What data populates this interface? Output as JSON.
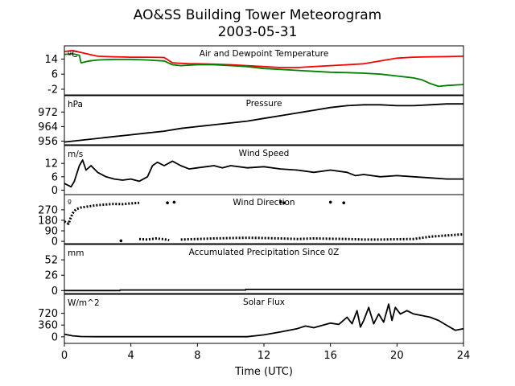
{
  "figure": {
    "title_line1": "AO&SS Building Tower Meteorogram",
    "title_line2": "2003-05-31",
    "xlabel": "Time (UTC)"
  },
  "chart_data": [
    {
      "type": "line",
      "title": "Air and Dewpoint Temperature",
      "unit": "ºC",
      "ylim": [
        -5,
        21
      ],
      "yticks": [
        -2,
        6,
        14
      ],
      "series": [
        {
          "color": "#ff0000",
          "points": [
            [
              0,
              18
            ],
            [
              0.5,
              18.5
            ],
            [
              1,
              17.5
            ],
            [
              1.5,
              16.5
            ],
            [
              2,
              15.5
            ],
            [
              3,
              15.2
            ],
            [
              4,
              15
            ],
            [
              5,
              15
            ],
            [
              6,
              14.8
            ],
            [
              6.5,
              12
            ],
            [
              7.5,
              11.5
            ],
            [
              8,
              11.5
            ],
            [
              9,
              11.3
            ],
            [
              10,
              11
            ],
            [
              11,
              10.5
            ],
            [
              12,
              10
            ],
            [
              13,
              9.5
            ],
            [
              14,
              9.5
            ],
            [
              15,
              10
            ],
            [
              16,
              10.5
            ],
            [
              17,
              11
            ],
            [
              18,
              11.5
            ],
            [
              19,
              13
            ],
            [
              20,
              14.5
            ],
            [
              21,
              15
            ],
            [
              22,
              15.2
            ],
            [
              23,
              15.3
            ],
            [
              24,
              15.5
            ]
          ]
        },
        {
          "color": "#008000",
          "points": [
            [
              0,
              16.5
            ],
            [
              0.5,
              16.8
            ],
            [
              0.9,
              16
            ],
            [
              1,
              12
            ],
            [
              1.5,
              13
            ],
            [
              2,
              13.5
            ],
            [
              3,
              13.8
            ],
            [
              4,
              13.8
            ],
            [
              5,
              13.5
            ],
            [
              6,
              13
            ],
            [
              6.5,
              11
            ],
            [
              7,
              10.5
            ],
            [
              8,
              11
            ],
            [
              9,
              11
            ],
            [
              10,
              10.5
            ],
            [
              11,
              10
            ],
            [
              12,
              9
            ],
            [
              13,
              8.5
            ],
            [
              14,
              8
            ],
            [
              15,
              7.5
            ],
            [
              16,
              7
            ],
            [
              17,
              6.8
            ],
            [
              18,
              6.5
            ],
            [
              19,
              6
            ],
            [
              20,
              5
            ],
            [
              21,
              4
            ],
            [
              21.5,
              3
            ],
            [
              22,
              1
            ],
            [
              22.5,
              -0.5
            ],
            [
              23,
              0
            ],
            [
              24,
              0.5
            ]
          ]
        }
      ]
    },
    {
      "type": "line",
      "title": "Pressure",
      "unit": "hPa",
      "ylim": [
        954,
        981
      ],
      "yticks": [
        956,
        964,
        972
      ],
      "series": [
        {
          "color": "#000000",
          "points": [
            [
              0,
              955.5
            ],
            [
              1,
              956.5
            ],
            [
              2,
              957.5
            ],
            [
              3,
              958.5
            ],
            [
              4,
              959.5
            ],
            [
              5,
              960.5
            ],
            [
              6,
              961.5
            ],
            [
              7,
              963
            ],
            [
              8,
              964
            ],
            [
              9,
              965
            ],
            [
              10,
              966
            ],
            [
              11,
              967
            ],
            [
              12,
              968.5
            ],
            [
              13,
              970
            ],
            [
              14,
              971.5
            ],
            [
              15,
              973
            ],
            [
              16,
              974.5
            ],
            [
              17,
              975.5
            ],
            [
              18,
              976
            ],
            [
              19,
              976
            ],
            [
              20,
              975.5
            ],
            [
              21,
              975.5
            ],
            [
              22,
              976
            ],
            [
              23,
              976.5
            ],
            [
              24,
              976.5
            ]
          ]
        }
      ]
    },
    {
      "type": "line",
      "title": "Wind Speed",
      "unit": "m/s",
      "ylim": [
        -2,
        20
      ],
      "yticks": [
        0,
        6,
        12
      ],
      "series": [
        {
          "color": "#000000",
          "points": [
            [
              0,
              3
            ],
            [
              0.4,
              1.5
            ],
            [
              0.6,
              4
            ],
            [
              0.9,
              11
            ],
            [
              1.1,
              13.5
            ],
            [
              1.3,
              9
            ],
            [
              1.6,
              11
            ],
            [
              2,
              8
            ],
            [
              2.5,
              6
            ],
            [
              3,
              5
            ],
            [
              3.5,
              4.5
            ],
            [
              4,
              5
            ],
            [
              4.5,
              4
            ],
            [
              5,
              6
            ],
            [
              5.3,
              11
            ],
            [
              5.6,
              12.5
            ],
            [
              6,
              11
            ],
            [
              6.5,
              13
            ],
            [
              7,
              11
            ],
            [
              7.5,
              9.5
            ],
            [
              8,
              10
            ],
            [
              9,
              11
            ],
            [
              9.5,
              10
            ],
            [
              10,
              11
            ],
            [
              11,
              10
            ],
            [
              12,
              10.5
            ],
            [
              13,
              9.5
            ],
            [
              14,
              9
            ],
            [
              15,
              8
            ],
            [
              16,
              9
            ],
            [
              17,
              8
            ],
            [
              17.5,
              6.5
            ],
            [
              18,
              7
            ],
            [
              19,
              6
            ],
            [
              20,
              6.5
            ],
            [
              21,
              6
            ],
            [
              22,
              5.5
            ],
            [
              23,
              5
            ],
            [
              24,
              5
            ]
          ]
        }
      ]
    },
    {
      "type": "scatter",
      "title": "Wind Direction",
      "unit": "º",
      "ylim": [
        -20,
        400
      ],
      "yticks": [
        0,
        90,
        180,
        270
      ],
      "series": [
        {
          "color": "#000000",
          "segments": [
            [
              [
                0,
                170
              ],
              [
                0.25,
                150
              ],
              [
                0.35,
                190
              ],
              [
                0.5,
                240
              ],
              [
                0.7,
                275
              ],
              [
                1,
                290
              ],
              [
                1.5,
                300
              ],
              [
                2,
                310
              ],
              [
                2.5,
                315
              ],
              [
                3,
                320
              ],
              [
                3.5,
                318
              ],
              [
                4,
                325
              ],
              [
                4.5,
                330
              ]
            ],
            [
              [
                4.5,
                20
              ],
              [
                5,
                15
              ],
              [
                5.5,
                25
              ],
              [
                6,
                18
              ],
              [
                6.3,
                10
              ]
            ],
            [
              [
                7,
                15
              ],
              [
                8,
                20
              ],
              [
                9,
                25
              ],
              [
                10,
                28
              ],
              [
                11,
                30
              ],
              [
                12,
                28
              ],
              [
                13,
                25
              ],
              [
                14,
                20
              ],
              [
                15,
                25
              ],
              [
                16,
                22
              ],
              [
                17,
                20
              ],
              [
                18,
                15
              ],
              [
                19,
                15
              ],
              [
                20,
                18
              ],
              [
                21,
                20
              ],
              [
                22,
                40
              ],
              [
                23,
                50
              ],
              [
                24,
                60
              ]
            ]
          ],
          "dots": [
            [
              3.4,
              5
            ],
            [
              6.2,
              330
            ],
            [
              6.6,
              335
            ],
            [
              13,
              335
            ],
            [
              13.2,
              330
            ],
            [
              16,
              335
            ],
            [
              16.8,
              330
            ]
          ]
        }
      ]
    },
    {
      "type": "line",
      "title": "Accumulated Precipitation Since 0Z",
      "unit": "mm",
      "ylim": [
        -5,
        78
      ],
      "yticks": [
        0,
        26,
        52
      ],
      "series": [
        {
          "color": "#000000",
          "points": [
            [
              0,
              0
            ],
            [
              3.35,
              0
            ],
            [
              3.35,
              1
            ],
            [
              10.9,
              1
            ],
            [
              10.9,
              2
            ],
            [
              24,
              2
            ]
          ]
        }
      ]
    },
    {
      "type": "line",
      "title": "Solar Flux",
      "unit": "W/m^2",
      "ylim": [
        -200,
        1300
      ],
      "yticks": [
        0,
        360,
        720
      ],
      "series": [
        {
          "color": "#000000",
          "points": [
            [
              0,
              80
            ],
            [
              0.5,
              30
            ],
            [
              1,
              10
            ],
            [
              2,
              5
            ],
            [
              4,
              5
            ],
            [
              6,
              5
            ],
            [
              8,
              5
            ],
            [
              10,
              5
            ],
            [
              11,
              5
            ],
            [
              12,
              60
            ],
            [
              13,
              150
            ],
            [
              14,
              250
            ],
            [
              14.5,
              330
            ],
            [
              15,
              280
            ],
            [
              15.5,
              350
            ],
            [
              16,
              420
            ],
            [
              16.5,
              380
            ],
            [
              17,
              600
            ],
            [
              17.3,
              400
            ],
            [
              17.6,
              800
            ],
            [
              17.8,
              300
            ],
            [
              18,
              500
            ],
            [
              18.3,
              900
            ],
            [
              18.6,
              400
            ],
            [
              18.9,
              700
            ],
            [
              19.2,
              450
            ],
            [
              19.5,
              1000
            ],
            [
              19.7,
              500
            ],
            [
              19.9,
              900
            ],
            [
              20.2,
              700
            ],
            [
              20.6,
              800
            ],
            [
              21,
              700
            ],
            [
              21.5,
              650
            ],
            [
              22,
              600
            ],
            [
              22.5,
              500
            ],
            [
              23,
              350
            ],
            [
              23.5,
              200
            ],
            [
              24,
              250
            ]
          ]
        }
      ]
    }
  ],
  "x_axis": {
    "range": [
      0,
      24
    ],
    "ticks": [
      0,
      4,
      8,
      12,
      16,
      20,
      24
    ]
  }
}
